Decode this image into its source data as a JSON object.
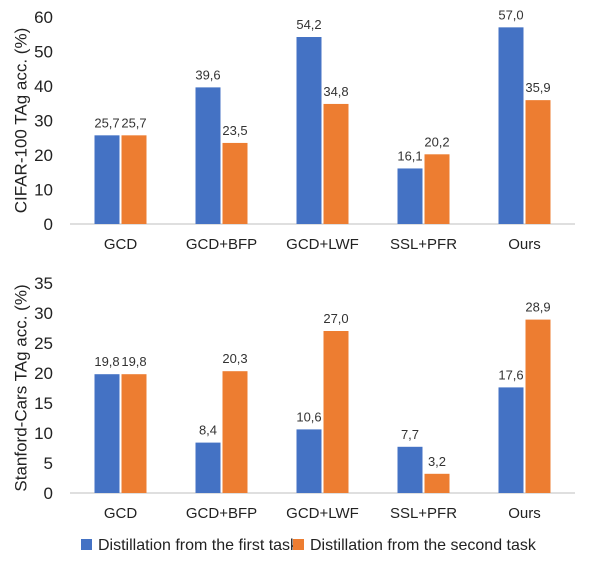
{
  "colors": {
    "series1": "#4472C4",
    "series2": "#ED7D31"
  },
  "legend": {
    "placement": "bottom",
    "items": [
      {
        "label": "Distillation from the first task"
      },
      {
        "label": "Distillation from the second task"
      }
    ]
  },
  "chart_data": [
    {
      "type": "bar",
      "title": "",
      "xlabel": "",
      "ylabel": "CIFAR-100 TAg acc. (%)",
      "ylim": [
        0,
        60
      ],
      "yticks": [
        "0",
        "10",
        "20",
        "30",
        "40",
        "50",
        "60"
      ],
      "grid": false,
      "categories": [
        "GCD",
        "GCD+BFP",
        "GCD+LWF",
        "SSL+PFR",
        "Ours"
      ],
      "series": [
        {
          "name": "Distillation from the first task",
          "values": [
            25.7,
            39.6,
            54.2,
            16.1,
            57.0
          ],
          "labels": [
            "25,7",
            "39,6",
            "54,2",
            "16,1",
            "57,0"
          ]
        },
        {
          "name": "Distillation from the second task",
          "values": [
            25.7,
            23.5,
            34.8,
            20.2,
            35.9
          ],
          "labels": [
            "25,7",
            "23,5",
            "34,8",
            "20,2",
            "35,9"
          ]
        }
      ]
    },
    {
      "type": "bar",
      "title": "",
      "xlabel": "",
      "ylabel": "Stanford-Cars TAg acc. (%)",
      "ylim": [
        0,
        35
      ],
      "yticks": [
        "0",
        "5",
        "10",
        "15",
        "20",
        "25",
        "30",
        "35"
      ],
      "grid": false,
      "categories": [
        "GCD",
        "GCD+BFP",
        "GCD+LWF",
        "SSL+PFR",
        "Ours"
      ],
      "series": [
        {
          "name": "Distillation from the first task",
          "values": [
            19.8,
            8.4,
            10.6,
            7.7,
            17.6
          ],
          "labels": [
            "19,8",
            "8,4",
            "10,6",
            "7,7",
            "17,6"
          ]
        },
        {
          "name": "Distillation from the second task",
          "values": [
            19.8,
            20.3,
            27.0,
            3.2,
            28.9
          ],
          "labels": [
            "19,8",
            "20,3",
            "27,0",
            "3,2",
            "28,9"
          ]
        }
      ]
    }
  ]
}
